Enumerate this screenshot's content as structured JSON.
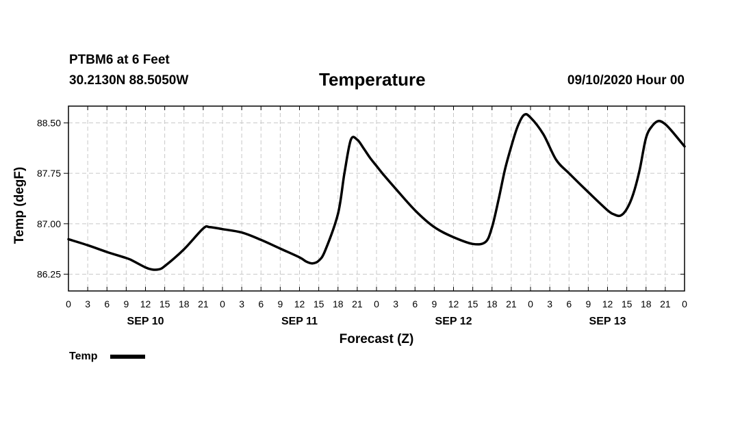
{
  "header": {
    "station": "PTBM6 at 6 Feet",
    "coords": "30.2130N 88.5050W",
    "title": "Temperature",
    "datetime": "09/10/2020 Hour 00"
  },
  "chart_data": {
    "type": "line",
    "title": "Temperature",
    "xlabel": "Forecast (Z)",
    "ylabel": "Temp (degF)",
    "x_unit": "forecast hours from 09/10/2020 00Z",
    "xlim": [
      0,
      96
    ],
    "ylim": [
      86.0,
      88.75
    ],
    "yticks": [
      86.25,
      87.0,
      87.75,
      88.5
    ],
    "ytick_labels": [
      "86.25",
      "87.00",
      "87.75",
      "88.50"
    ],
    "xtick_hours": [
      0,
      3,
      6,
      9,
      12,
      15,
      18,
      21,
      24,
      27,
      30,
      33,
      36,
      39,
      42,
      45,
      48,
      51,
      54,
      57,
      60,
      63,
      66,
      69,
      72,
      75,
      78,
      81,
      84,
      87,
      90,
      93,
      96
    ],
    "xtick_labels": [
      "0",
      "3",
      "6",
      "9",
      "12",
      "15",
      "18",
      "21",
      "0",
      "3",
      "6",
      "9",
      "12",
      "15",
      "18",
      "21",
      "0",
      "3",
      "6",
      "9",
      "12",
      "15",
      "18",
      "21",
      "0",
      "3",
      "6",
      "9",
      "12",
      "15",
      "18",
      "21",
      "0"
    ],
    "date_labels": [
      {
        "hour": 12,
        "label": "SEP 10"
      },
      {
        "hour": 36,
        "label": "SEP 11"
      },
      {
        "hour": 60,
        "label": "SEP 12"
      },
      {
        "hour": 84,
        "label": "SEP 13"
      }
    ],
    "grid": true,
    "legend": "bottom-left",
    "series": [
      {
        "name": "Temp",
        "x": [
          0,
          3,
          6,
          9,
          10,
          12,
          13,
          14,
          15,
          18,
          21,
          22,
          24,
          27,
          30,
          33,
          36,
          37,
          38,
          39,
          40,
          42,
          43,
          44,
          45,
          46,
          47,
          48,
          49,
          51,
          54,
          57,
          60,
          63,
          65,
          66,
          67,
          68,
          69,
          70,
          71,
          72,
          74,
          76,
          78,
          81,
          84,
          85,
          86,
          87,
          88,
          89,
          90,
          91,
          92,
          93,
          94,
          96
        ],
        "y": [
          86.77,
          86.68,
          86.58,
          86.49,
          86.45,
          86.35,
          86.32,
          86.32,
          86.37,
          86.62,
          86.93,
          86.95,
          86.92,
          86.87,
          86.76,
          86.63,
          86.5,
          86.44,
          86.41,
          86.45,
          86.6,
          87.15,
          87.75,
          88.25,
          88.25,
          88.12,
          87.98,
          87.86,
          87.74,
          87.52,
          87.2,
          86.95,
          86.8,
          86.7,
          86.73,
          86.95,
          87.35,
          87.8,
          88.15,
          88.45,
          88.62,
          88.58,
          88.33,
          87.95,
          87.75,
          87.47,
          87.2,
          87.14,
          87.12,
          87.22,
          87.44,
          87.8,
          88.28,
          88.46,
          88.53,
          88.48,
          88.38,
          88.15
        ]
      }
    ]
  },
  "legend": {
    "items": [
      {
        "label": "Temp",
        "color": "#000000"
      }
    ]
  }
}
